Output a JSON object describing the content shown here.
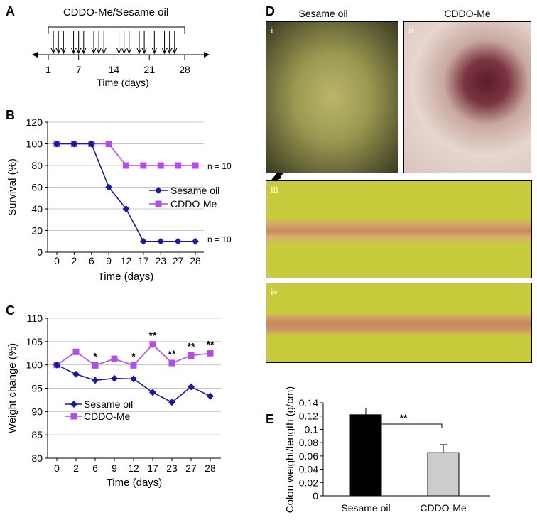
{
  "panel_labels": {
    "a": "A",
    "b": "B",
    "c": "C",
    "d": "D",
    "e": "E"
  },
  "panel_a": {
    "title": "CDDO-Me/Sesame oil",
    "ticks": [
      "1",
      "7",
      "14",
      "21",
      "28"
    ],
    "xlabel": "Time (days)"
  },
  "panel_d": {
    "col1": "Sesame oil",
    "col2": "CDDO-Me",
    "photos": [
      "i",
      "ii",
      "iii",
      "iv"
    ]
  },
  "colors": {
    "sesame": "#1a1a9c",
    "cddo": "#b44ce6",
    "bar1": "#000000",
    "bar2": "#cccccc"
  },
  "chart_data": [
    {
      "type": "line",
      "title": "",
      "categories": [
        "0",
        "2",
        "6",
        "9",
        "12",
        "17",
        "23",
        "27",
        "28"
      ],
      "xlabel": "Time (days)",
      "ylabel": "Survival (%)",
      "ylim": [
        0,
        120
      ],
      "yticks": [
        0,
        20,
        40,
        60,
        80,
        100,
        120
      ],
      "grid": true,
      "legend": "right",
      "series": [
        {
          "name": "Sesame oil",
          "values": [
            100,
            100,
            100,
            60,
            40,
            10,
            10,
            10,
            10
          ]
        },
        {
          "name": "CDDO-Me",
          "values": [
            100,
            100,
            100,
            100,
            80,
            80,
            80,
            80,
            80
          ]
        }
      ],
      "annotations": [
        "n = 10",
        "n = 10"
      ]
    },
    {
      "type": "line",
      "title": "",
      "categories": [
        "0",
        "2",
        "6",
        "9",
        "12",
        "17",
        "23",
        "27",
        "28"
      ],
      "xlabel": "Time (days)",
      "ylabel": "Weight change (%)",
      "ylim": [
        80,
        110
      ],
      "yticks": [
        80,
        85,
        90,
        95,
        100,
        105,
        110
      ],
      "grid": true,
      "legend": "bottom-left",
      "series": [
        {
          "name": "Sesame oil",
          "values": [
            100,
            98,
            96.7,
            97.1,
            97,
            94.1,
            92,
            95.3,
            93.3
          ]
        },
        {
          "name": "CDDO-Me",
          "values": [
            100,
            102.8,
            99.9,
            101.3,
            99.9,
            104.4,
            100.4,
            102,
            102.5
          ]
        }
      ],
      "significance": [
        "",
        "",
        "*",
        "",
        "*",
        "**",
        "**",
        "**",
        "**"
      ]
    },
    {
      "type": "bar",
      "title": "",
      "categories": [
        "Sesame oil",
        "CDDO-Me"
      ],
      "values": [
        0.122,
        0.065
      ],
      "errors": [
        0.01,
        0.012
      ],
      "xlabel": "",
      "ylabel": "Colon weight/length (g/cm)",
      "ylim": [
        0,
        0.14
      ],
      "yticks": [
        "0",
        "0.02",
        "0.04",
        "0.06",
        "0.08",
        "0.1",
        "0.12",
        "0.14"
      ],
      "significance": "**"
    }
  ]
}
